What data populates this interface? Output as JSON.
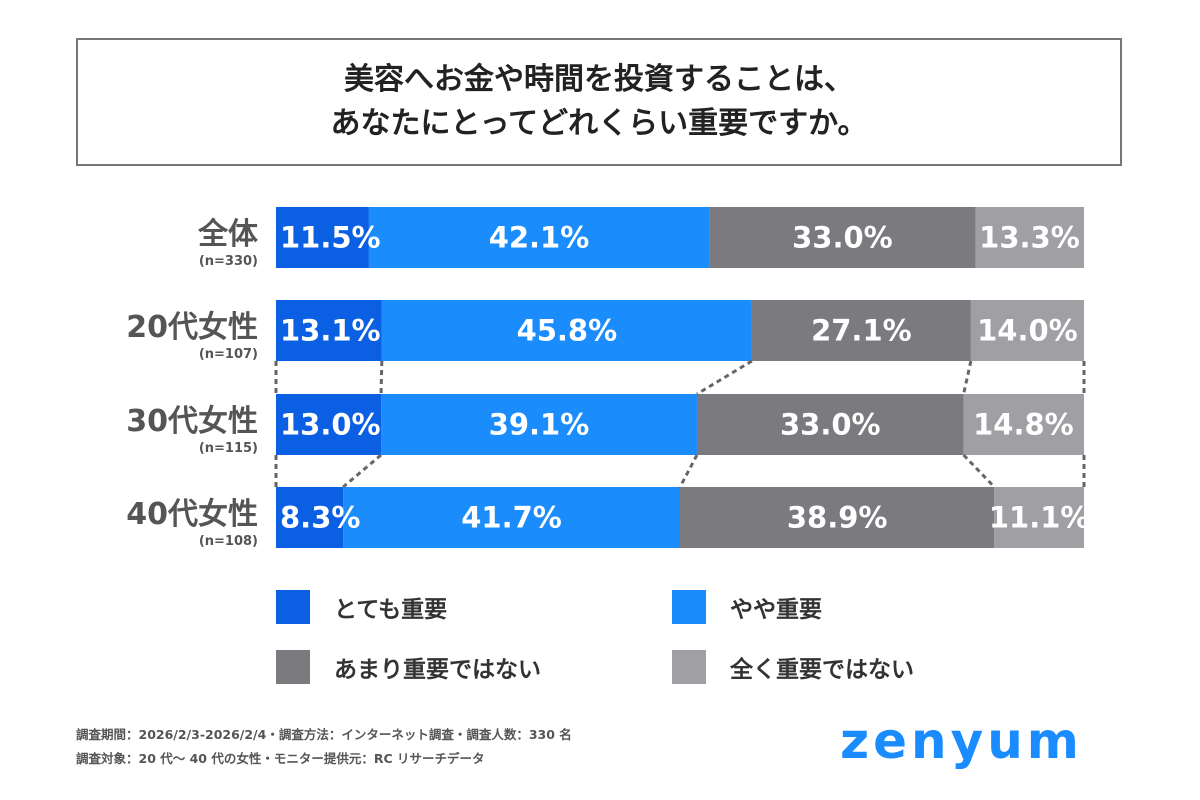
{
  "title": {
    "line1": "美容へお金や時間を投資することは、",
    "line2": "あなたにとってどれくらい重要ですか。"
  },
  "chart_data": {
    "type": "bar",
    "orientation": "horizontal-stacked-100",
    "categories": [
      {
        "label": "全体",
        "n": "(n=330)"
      },
      {
        "label": "20代女性",
        "n": "(n=107)"
      },
      {
        "label": "30代女性",
        "n": "(n=115)"
      },
      {
        "label": "40代女性",
        "n": "(n=108)"
      }
    ],
    "series": [
      {
        "name": "とても重要",
        "color": "#0b5fe3",
        "values": [
          11.5,
          13.1,
          13.0,
          8.3
        ],
        "labels": [
          "11.5%",
          "13.1%",
          "13.0%",
          "8.3%"
        ]
      },
      {
        "name": "やや重要",
        "color": "#1a8cfc",
        "values": [
          42.1,
          45.8,
          39.1,
          41.7
        ],
        "labels": [
          "42.1%",
          "45.8%",
          "39.1%",
          "41.7%"
        ]
      },
      {
        "name": "あまり重要ではない",
        "color": "#7b7a7f",
        "values": [
          33.0,
          27.1,
          33.0,
          38.9
        ],
        "labels": [
          "33.0%",
          "27.1%",
          "33.0%",
          "38.9%"
        ]
      },
      {
        "name": "全く重要ではない",
        "color": "#a09fa3",
        "values": [
          13.3,
          14.0,
          14.8,
          11.1
        ],
        "labels": [
          "13.3%",
          "14.0%",
          "14.8%",
          "11.1%"
        ]
      }
    ],
    "xlim": [
      0,
      100
    ],
    "connector_lines": "dashed between 20代・30代・40代",
    "legend_placement": "bottom"
  },
  "footer": {
    "line1": "調査期間：2026/2/3-2026/2/4・調査方法：インターネット調査・調査人数：330 名",
    "line2": "調査対象：20 代〜 40 代の女性・モニター提供元：RC リサーチデータ"
  },
  "logo": "zenyum"
}
